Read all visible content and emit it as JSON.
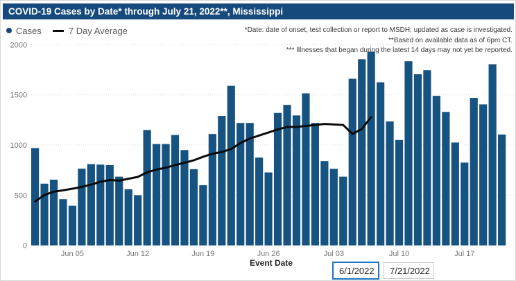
{
  "header": {
    "title": "COVID-19 Cases by Date* through July 21, 2022**, Mississippi"
  },
  "legend": {
    "cases_label": "Cases",
    "avg_label": "7 Day Average"
  },
  "annotations": {
    "line1": "*Date: date of onset, test collection or report to MSDH; updated as case is investigated.",
    "line2": "**Based on available data as of 6pm CT.",
    "line3": "*** Illnesses that began during the latest 14 days may not yet be reported."
  },
  "date_inputs": {
    "start": "6/1/2022",
    "end": "7/21/2022"
  },
  "colors": {
    "header_bg": "#174A7C",
    "bar": "#175380",
    "avg_line": "#0B0B0B",
    "grid": "#DADADA",
    "axis_text": "#757575",
    "input_focus_border": "#2073C2"
  },
  "chart_data": {
    "type": "bar",
    "title": "COVID-19 Cases by Date through July 21, 2022, Mississippi",
    "xlabel": "Event Date",
    "ylabel": "",
    "ylim": [
      0,
      2000
    ],
    "yticks": [
      0,
      500,
      1000,
      1500,
      2000
    ],
    "grid": "dotted-horizontal",
    "legend_position": "top-left",
    "x_dates": [
      "Jun 01",
      "Jun 02",
      "Jun 03",
      "Jun 04",
      "Jun 05",
      "Jun 06",
      "Jun 07",
      "Jun 08",
      "Jun 09",
      "Jun 10",
      "Jun 11",
      "Jun 12",
      "Jun 13",
      "Jun 14",
      "Jun 15",
      "Jun 16",
      "Jun 17",
      "Jun 18",
      "Jun 19",
      "Jun 20",
      "Jun 21",
      "Jun 22",
      "Jun 23",
      "Jun 24",
      "Jun 25",
      "Jun 26",
      "Jun 27",
      "Jun 28",
      "Jun 29",
      "Jun 30",
      "Jul 01",
      "Jul 02",
      "Jul 03",
      "Jul 04",
      "Jul 05",
      "Jul 06",
      "Jul 07",
      "Jul 08",
      "Jul 09",
      "Jul 10",
      "Jul 11",
      "Jul 12",
      "Jul 13",
      "Jul 14",
      "Jul 15",
      "Jul 16",
      "Jul 17",
      "Jul 18",
      "Jul 19",
      "Jul 20",
      "Jul 21"
    ],
    "xticks": [
      {
        "label": "Jun 05",
        "day_index": 4
      },
      {
        "label": "Jun 12",
        "day_index": 11
      },
      {
        "label": "Jun 19",
        "day_index": 18
      },
      {
        "label": "Jun 26",
        "day_index": 25
      },
      {
        "label": "Jul 03",
        "day_index": 32
      },
      {
        "label": "Jul 10",
        "day_index": 39
      },
      {
        "label": "Jul 17",
        "day_index": 46
      }
    ],
    "series": [
      {
        "name": "Cases",
        "type": "bar",
        "values": [
          970,
          615,
          655,
          460,
          395,
          765,
          810,
          805,
          800,
          685,
          560,
          500,
          1150,
          1010,
          1010,
          1100,
          950,
          760,
          600,
          1110,
          1290,
          1590,
          1220,
          1220,
          875,
          727,
          1320,
          1400,
          1295,
          1515,
          1220,
          840,
          763,
          685,
          1660,
          1855,
          1930,
          1625,
          1235,
          1050,
          1835,
          1705,
          1745,
          1490,
          1330,
          1025,
          825,
          1470,
          1405,
          1805,
          1105
        ]
      },
      {
        "name": "7 Day Average",
        "type": "line",
        "values": [
          438,
          502,
          535,
          549,
          565,
          583,
          606,
          634,
          652,
          645,
          664,
          682,
          728,
          756,
          774,
          800,
          823,
          848,
          883,
          913,
          931,
          960,
          1020,
          1065,
          1095,
          1125,
          1155,
          1180,
          1180,
          1190,
          1200,
          1210,
          1205,
          1200,
          1110,
          1160,
          1280,
          null,
          null,
          null,
          null,
          null,
          null,
          null,
          null,
          null,
          null,
          null,
          null,
          null,
          null
        ]
      }
    ]
  }
}
